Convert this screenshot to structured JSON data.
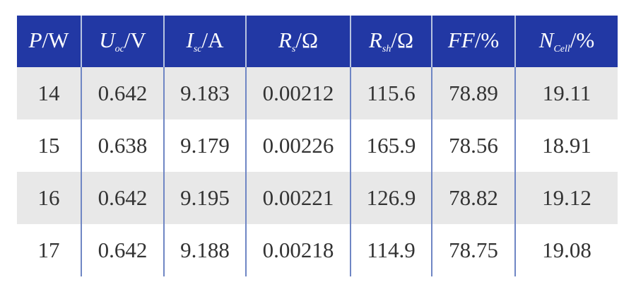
{
  "header": [
    {
      "sym": "P",
      "sub": "",
      "unit": "/W"
    },
    {
      "sym": "U",
      "sub": "oc",
      "unit": "/V"
    },
    {
      "sym": "I",
      "sub": "sc",
      "unit": "/A"
    },
    {
      "sym": "R",
      "sub": "s",
      "unit": "/Ω"
    },
    {
      "sym": "R",
      "sub": "sh",
      "unit": "/Ω"
    },
    {
      "sym": "FF",
      "sub": "",
      "unit": "/%"
    },
    {
      "sym": "N",
      "sub": "Cell",
      "unit": "/%"
    }
  ],
  "rows": [
    [
      "14",
      "0.642",
      "9.183",
      "0.00212",
      "115.6",
      "78.89",
      "19.11"
    ],
    [
      "15",
      "0.638",
      "9.179",
      "0.00226",
      "165.9",
      "78.56",
      "18.91"
    ],
    [
      "16",
      "0.642",
      "9.195",
      "0.00221",
      "126.9",
      "78.82",
      "19.12"
    ],
    [
      "17",
      "0.642",
      "9.188",
      "0.00218",
      "114.9",
      "78.75",
      "19.08"
    ]
  ],
  "colors": {
    "header_bg": "#2238a4",
    "stripe": "#e8e8e8"
  }
}
